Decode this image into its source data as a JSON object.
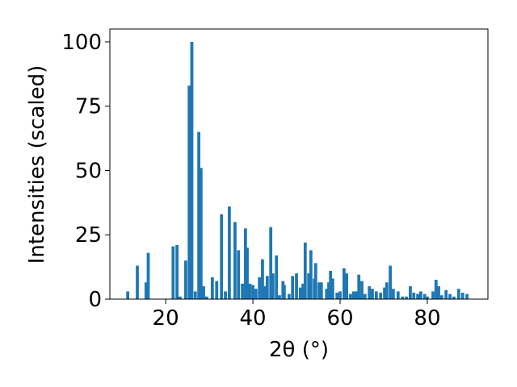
{
  "chart_data": {
    "type": "bar",
    "xlabel": "2θ (°)",
    "ylabel": "Intensities (scaled)",
    "color": "#1f77b4",
    "grid": false,
    "x": [
      11.3,
      13.5,
      15.5,
      16.0,
      21.7,
      22.6,
      23.3,
      24.6,
      25.4,
      26.0,
      26.8,
      27.6,
      28.1,
      28.7,
      29.4,
      30.7,
      31.7,
      32.8,
      33.7,
      34.6,
      35.9,
      36.7,
      37.6,
      38.3,
      38.7,
      39.3,
      40.0,
      40.7,
      41.5,
      42.2,
      42.8,
      43.3,
      44.1,
      44.6,
      45.4,
      46.1,
      46.9,
      47.2,
      48.3,
      49.1,
      50.0,
      50.9,
      51.5,
      52.0,
      52.8,
      53.3,
      54.1,
      54.4,
      55.2,
      55.7,
      56.9,
      57.4,
      57.8,
      58.3,
      59.3,
      60.0,
      60.9,
      61.5,
      62.4,
      63.1,
      63.7,
      64.3,
      65.0,
      65.7,
      66.7,
      67.4,
      68.3,
      69.3,
      70.2,
      70.7,
      71.5,
      72.2,
      73.3,
      74.3,
      75.2,
      76.1,
      76.9,
      77.8,
      78.5,
      79.4,
      80.0,
      81.3,
      82.0,
      82.6,
      83.3,
      84.3,
      85.2,
      86.1,
      87.2,
      88.1,
      89.1
    ],
    "values": [
      3,
      13,
      6.5,
      18,
      20.5,
      21,
      1,
      15,
      83,
      100,
      3,
      65,
      51,
      5,
      1,
      8.5,
      7,
      33,
      3,
      36,
      30,
      19,
      6,
      27.5,
      20,
      6,
      5.5,
      4,
      8.5,
      15.5,
      5,
      9,
      28,
      10,
      17,
      1.5,
      7,
      5.5,
      2,
      9,
      10,
      4.5,
      6,
      22,
      10,
      19,
      8,
      14,
      6.5,
      6.5,
      4,
      6.5,
      11,
      8,
      2.5,
      3,
      12,
      10,
      2,
      3,
      3,
      9.5,
      7,
      2,
      5,
      4,
      3,
      2.5,
      4.5,
      6.5,
      13,
      4,
      3,
      1,
      1,
      5,
      2.5,
      2,
      3,
      2,
      1,
      3,
      7.5,
      5,
      1.5,
      3.5,
      2,
      1,
      4,
      2.5,
      2
    ],
    "xlim": [
      7.2,
      93.9
    ],
    "ylim": [
      0,
      105
    ],
    "xticks": [
      20,
      40,
      60,
      80
    ],
    "yticks": [
      0,
      25,
      50,
      75,
      100
    ]
  }
}
